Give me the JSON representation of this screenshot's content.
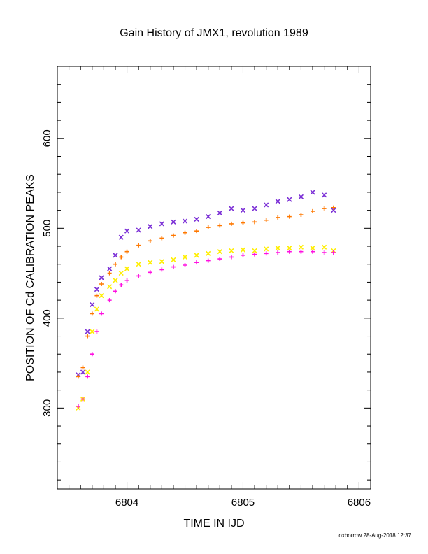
{
  "chart_data": {
    "type": "scatter",
    "title": "Gain History of JMX1, revolution 1989",
    "xlabel": "TIME IN IJD",
    "ylabel": "POSITION OF Cd CALIBRATION PEAKS",
    "xlim": [
      6803.4,
      6806.1
    ],
    "ylim": [
      210,
      680
    ],
    "x_ticks": [
      6804,
      6805,
      6806
    ],
    "y_ticks": [
      300,
      400,
      500,
      600
    ],
    "x_tick_labels": [
      "6804",
      "6805",
      "6806"
    ],
    "y_tick_labels": [
      "300",
      "400",
      "500",
      "600"
    ],
    "grid": false,
    "series": [
      {
        "marker": "x",
        "color": "#7b2fd6",
        "x": [
          6803.58,
          6803.62,
          6803.66,
          6803.7,
          6803.74,
          6803.78,
          6803.85,
          6803.9,
          6803.95,
          6804.0,
          6804.1,
          6804.2,
          6804.3,
          6804.4,
          6804.5,
          6804.6,
          6804.7,
          6804.8,
          6804.9,
          6805.0,
          6805.1,
          6805.2,
          6805.3,
          6805.4,
          6805.5,
          6805.6,
          6805.7,
          6805.78
        ],
        "y": [
          337,
          340,
          385,
          415,
          432,
          445,
          455,
          470,
          490,
          497,
          498,
          502,
          505,
          507,
          508,
          510,
          513,
          517,
          522,
          520,
          522,
          526,
          530,
          532,
          535,
          540,
          537,
          520
        ]
      },
      {
        "marker": "x",
        "color": "#ffee00",
        "x": [
          6803.58,
          6803.62,
          6803.66,
          6803.7,
          6803.74,
          6803.78,
          6803.85,
          6803.9,
          6803.95,
          6804.0,
          6804.1,
          6804.2,
          6804.3,
          6804.4,
          6804.5,
          6804.6,
          6804.7,
          6804.8,
          6804.9,
          6805.0,
          6805.1,
          6805.2,
          6805.3,
          6805.4,
          6805.5,
          6805.6,
          6805.7,
          6805.78
        ],
        "y": [
          300,
          310,
          340,
          385,
          410,
          425,
          435,
          442,
          450,
          455,
          460,
          462,
          463,
          465,
          468,
          470,
          472,
          474,
          475,
          476,
          475,
          477,
          478,
          478,
          479,
          478,
          479,
          475
        ]
      },
      {
        "marker": "+",
        "color": "#ff7800",
        "x": [
          6803.58,
          6803.62,
          6803.66,
          6803.7,
          6803.74,
          6803.78,
          6803.85,
          6803.9,
          6803.95,
          6804.0,
          6804.1,
          6804.2,
          6804.3,
          6804.4,
          6804.5,
          6804.6,
          6804.7,
          6804.8,
          6804.9,
          6805.0,
          6805.1,
          6805.2,
          6805.3,
          6805.4,
          6805.5,
          6805.6,
          6805.7,
          6805.78
        ],
        "y": [
          335,
          345,
          380,
          405,
          425,
          438,
          450,
          460,
          468,
          474,
          481,
          486,
          489,
          492,
          495,
          497,
          501,
          503,
          505,
          506,
          507,
          509,
          512,
          513,
          515,
          519,
          522,
          523
        ]
      },
      {
        "marker": "+",
        "color": "#ff10e0",
        "x": [
          6803.58,
          6803.62,
          6803.66,
          6803.7,
          6803.74,
          6803.78,
          6803.85,
          6803.9,
          6803.95,
          6804.0,
          6804.1,
          6804.2,
          6804.3,
          6804.4,
          6804.5,
          6804.6,
          6804.7,
          6804.8,
          6804.9,
          6805.0,
          6805.1,
          6805.2,
          6805.3,
          6805.4,
          6805.5,
          6805.6,
          6805.7,
          6805.78
        ],
        "y": [
          302,
          310,
          335,
          360,
          385,
          405,
          420,
          430,
          437,
          442,
          447,
          451,
          454,
          457,
          459,
          462,
          464,
          466,
          468,
          470,
          471,
          472,
          473,
          474,
          474,
          474,
          473,
          473
        ]
      }
    ],
    "footer": "oxborrow 28-Aug-2018 12:37"
  }
}
